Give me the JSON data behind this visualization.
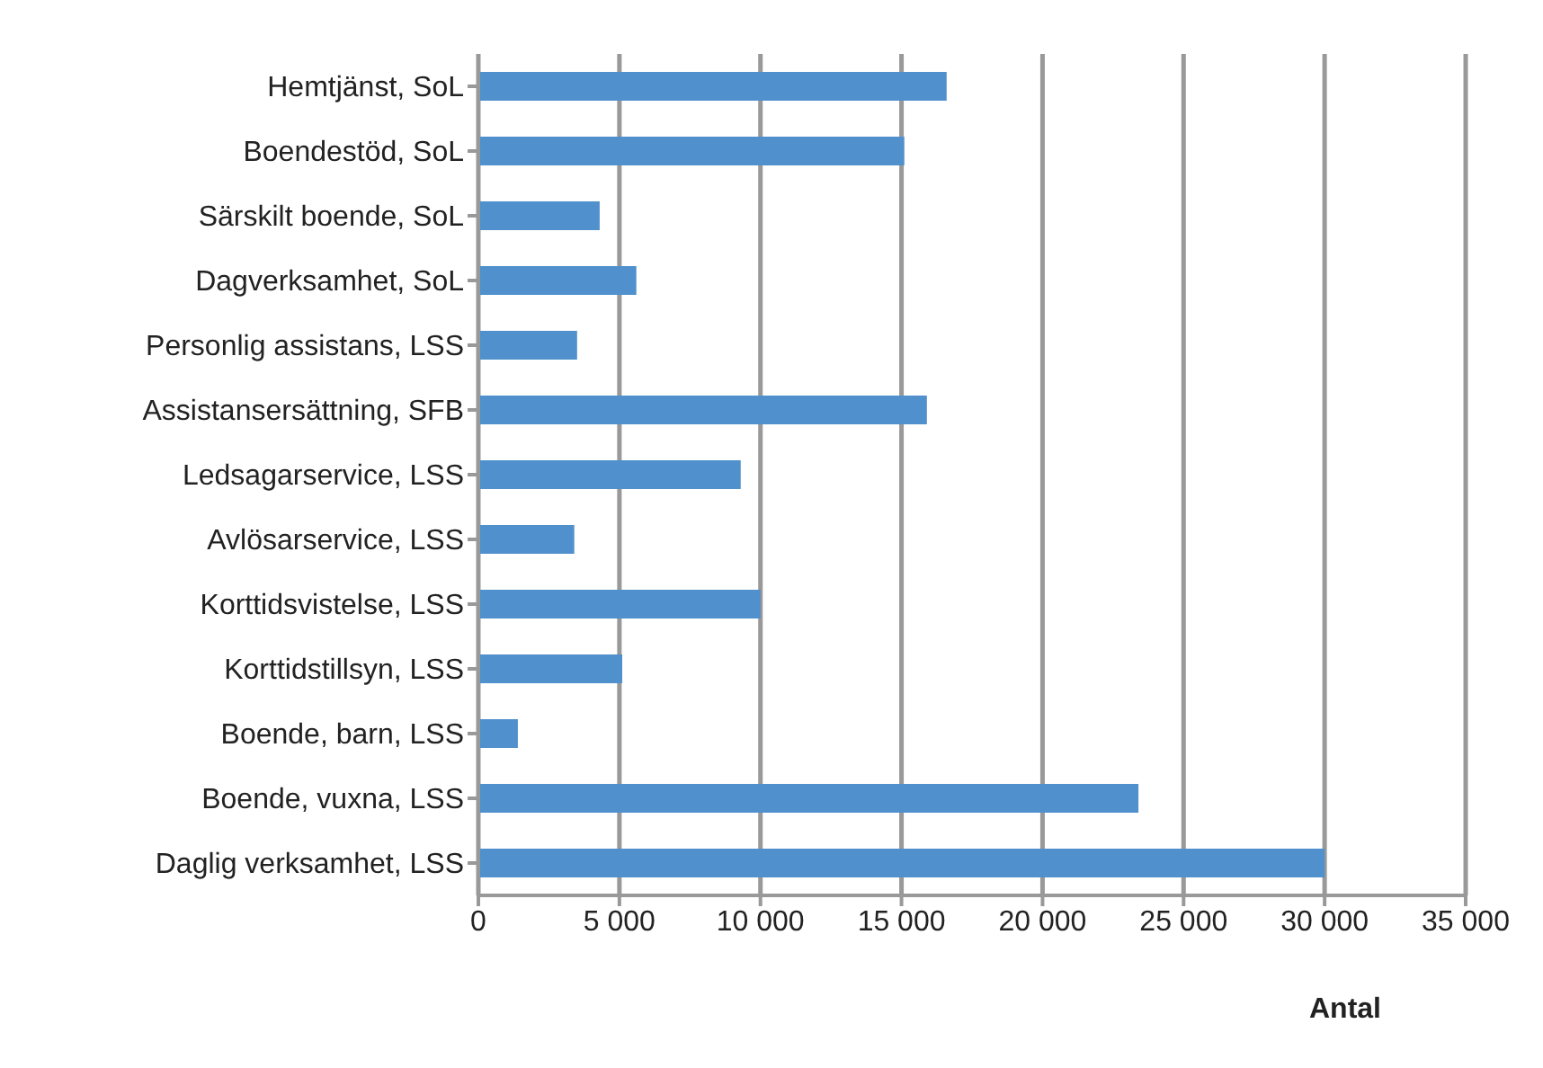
{
  "chart_data": {
    "type": "bar",
    "orientation": "horizontal",
    "xlabel": "Antal",
    "categories": [
      "Hemtjänst,  SoL",
      "Boendestöd, SoL",
      "Särskilt boende, SoL",
      "Dagverksamhet, SoL",
      "Personlig assistans,  LSS",
      "Assistansersättning,  SFB",
      "Ledsagarservice, LSS",
      "Avlösarservice, LSS",
      "Korttidsvistelse, LSS",
      "Korttidstillsyn,  LSS",
      "Boende, barn, LSS",
      "Boende, vuxna, LSS",
      "Daglig verksamhet, LSS"
    ],
    "values": [
      16600,
      15100,
      4300,
      5600,
      3500,
      15900,
      9300,
      3400,
      10000,
      5100,
      1400,
      23400,
      30000
    ],
    "color": "#4f90cd",
    "xlim": [
      0,
      35000
    ],
    "xticks": [
      {
        "value": 0,
        "label": "0"
      },
      {
        "value": 5000,
        "label": "5 000"
      },
      {
        "value": 10000,
        "label": "10 000"
      },
      {
        "value": 15000,
        "label": "15 000"
      },
      {
        "value": 20000,
        "label": "20 000"
      },
      {
        "value": 25000,
        "label": "25 000"
      },
      {
        "value": 30000,
        "label": "30 000"
      },
      {
        "value": 35000,
        "label": "35 000"
      }
    ],
    "grid": "x"
  }
}
